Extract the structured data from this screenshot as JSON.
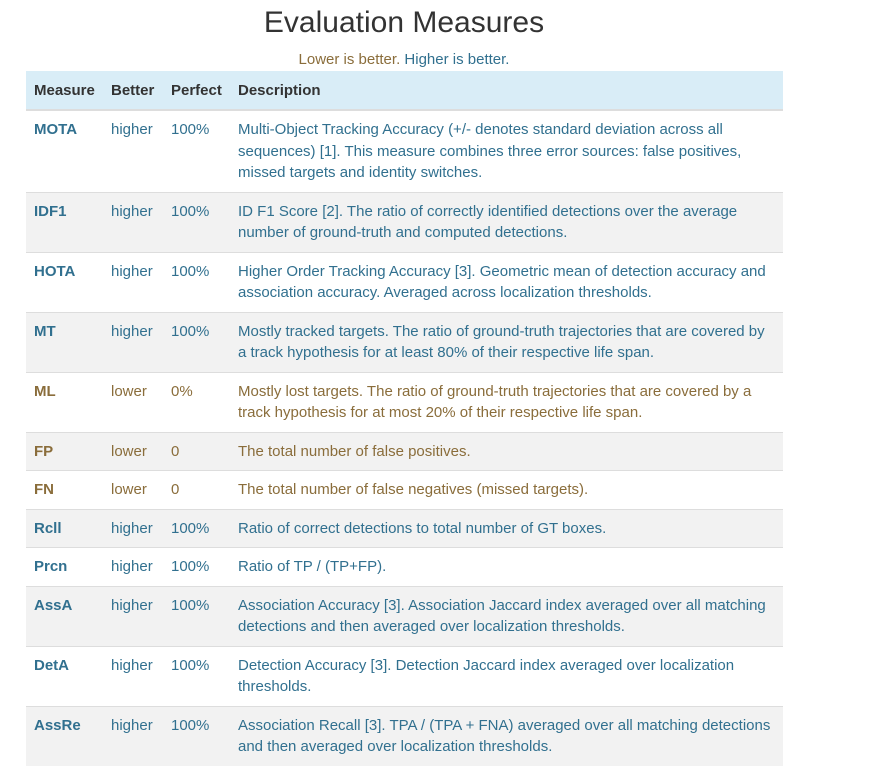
{
  "title": "Evaluation Measures",
  "legend": {
    "lower": "Lower is better.",
    "higher": "Higher is better."
  },
  "table": {
    "headers": [
      "Measure",
      "Better",
      "Perfect",
      "Description"
    ],
    "rows": [
      {
        "measure": "MOTA",
        "better": "higher",
        "perfect": "100%",
        "description": "Multi-Object Tracking Accuracy (+/- denotes standard deviation across all sequences) [1]. This measure combines three error sources: false positives, missed targets and identity switches."
      },
      {
        "measure": "IDF1",
        "better": "higher",
        "perfect": "100%",
        "description": "ID F1 Score [2]. The ratio of correctly identified detections over the average number of ground-truth and computed detections."
      },
      {
        "measure": "HOTA",
        "better": "higher",
        "perfect": "100%",
        "description": "Higher Order Tracking Accuracy [3]. Geometric mean of detection accuracy and association accuracy. Averaged across localization thresholds."
      },
      {
        "measure": "MT",
        "better": "higher",
        "perfect": "100%",
        "description": "Mostly tracked targets. The ratio of ground-truth trajectories that are covered by a track hypothesis for at least 80% of their respective life span."
      },
      {
        "measure": "ML",
        "better": "lower",
        "perfect": "0%",
        "description": "Mostly lost targets. The ratio of ground-truth trajectories that are covered by a track hypothesis for at most 20% of their respective life span."
      },
      {
        "measure": "FP",
        "better": "lower",
        "perfect": "0",
        "description": "The total number of false positives."
      },
      {
        "measure": "FN",
        "better": "lower",
        "perfect": "0",
        "description": "The total number of false negatives (missed targets)."
      },
      {
        "measure": "Rcll",
        "better": "higher",
        "perfect": "100%",
        "description": "Ratio of correct detections to total number of GT boxes."
      },
      {
        "measure": "Prcn",
        "better": "higher",
        "perfect": "100%",
        "description": "Ratio of TP / (TP+FP)."
      },
      {
        "measure": "AssA",
        "better": "higher",
        "perfect": "100%",
        "description": "Association Accuracy [3]. Association Jaccard index averaged over all matching detections and then averaged over localization thresholds."
      },
      {
        "measure": "DetA",
        "better": "higher",
        "perfect": "100%",
        "description": "Detection Accuracy [3]. Detection Jaccard index averaged over localization thresholds."
      },
      {
        "measure": "AssRe",
        "better": "higher",
        "perfect": "100%",
        "description": "Association Recall [3]. TPA / (TPA + FNA) averaged over all matching detections and then averaged over localization thresholds."
      }
    ]
  },
  "colors": {
    "higher": "#31708f",
    "lower": "#8a6d3b",
    "header_bg": "#d9edf7",
    "stripe_bg": "#f2f2f2"
  }
}
